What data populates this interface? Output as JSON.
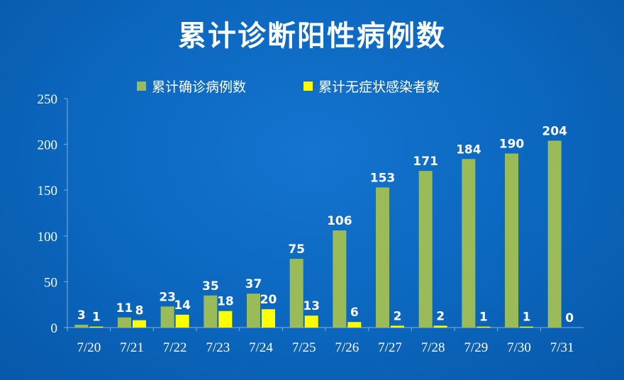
{
  "title": "累计诊断阳性病例数",
  "colors": {
    "confirmed": "#9bbb59",
    "asymptomatic": "#ffff00",
    "axis_line": "#7fb0e0",
    "text": "#ffffff",
    "background": "#0a66bf"
  },
  "chart_data": {
    "type": "bar",
    "title": "累计诊断阳性病例数",
    "categories": [
      "7/20",
      "7/21",
      "7/22",
      "7/23",
      "7/24",
      "7/25",
      "7/26",
      "7/27",
      "7/28",
      "7/29",
      "7/30",
      "7/31"
    ],
    "series": [
      {
        "name": "累计确诊病例数",
        "values": [
          3,
          11,
          23,
          35,
          37,
          75,
          106,
          153,
          171,
          184,
          190,
          204
        ]
      },
      {
        "name": "累计无症状感染者数",
        "values": [
          1,
          8,
          14,
          18,
          20,
          13,
          6,
          2,
          2,
          1,
          1,
          0
        ]
      }
    ],
    "ylim": [
      0,
      250
    ],
    "yticks": [
      0,
      50,
      100,
      150,
      200,
      250
    ],
    "grid": false,
    "legend": "top-center",
    "data_labels": true
  }
}
